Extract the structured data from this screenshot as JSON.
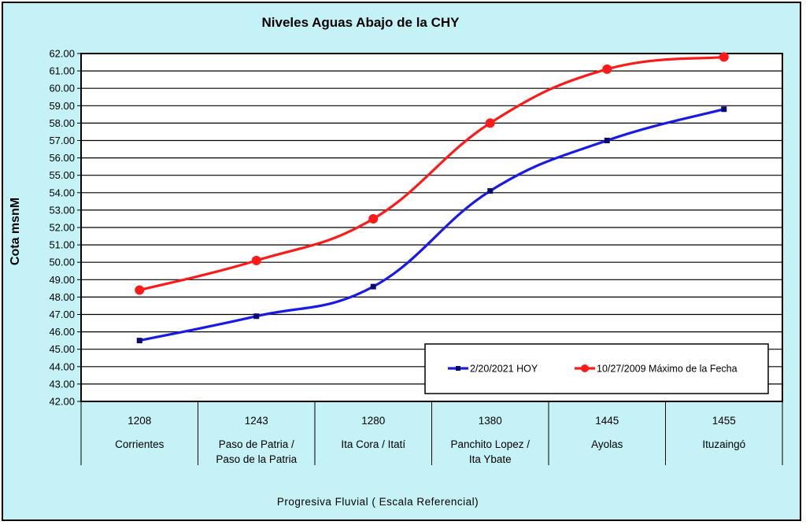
{
  "chart_data": {
    "type": "line",
    "title": "Niveles Aguas Abajo de la CHY",
    "ylabel": "Cota msnM",
    "xlabel": "Progresiva Fluvial ( Escala Referencial)",
    "ylim": [
      42,
      62
    ],
    "ystep": 1,
    "grid": true,
    "legend_position": "bottom-right",
    "categories": [
      {
        "code": "1208",
        "name": [
          "Corrientes"
        ]
      },
      {
        "code": "1243",
        "name": [
          "Paso de Patria /",
          "Paso de la Patria"
        ]
      },
      {
        "code": "1280",
        "name": [
          "Ita Cora / Itatí"
        ]
      },
      {
        "code": "1380",
        "name": [
          "Panchito Lopez /",
          "Ita Ybate"
        ]
      },
      {
        "code": "1445",
        "name": [
          "Ayolas"
        ]
      },
      {
        "code": "1455",
        "name": [
          "Ituzaingó"
        ]
      }
    ],
    "series": [
      {
        "name": "2/20/2021 HOY",
        "color": "#1a1ae6",
        "marker": "square",
        "values": [
          45.5,
          46.9,
          48.6,
          54.1,
          57.0,
          58.8
        ]
      },
      {
        "name": "10/27/2009 Máximo de la Fecha",
        "color": "#ff1a1a",
        "marker": "circle",
        "values": [
          48.4,
          50.1,
          52.5,
          58.0,
          61.1,
          61.8
        ]
      }
    ]
  }
}
